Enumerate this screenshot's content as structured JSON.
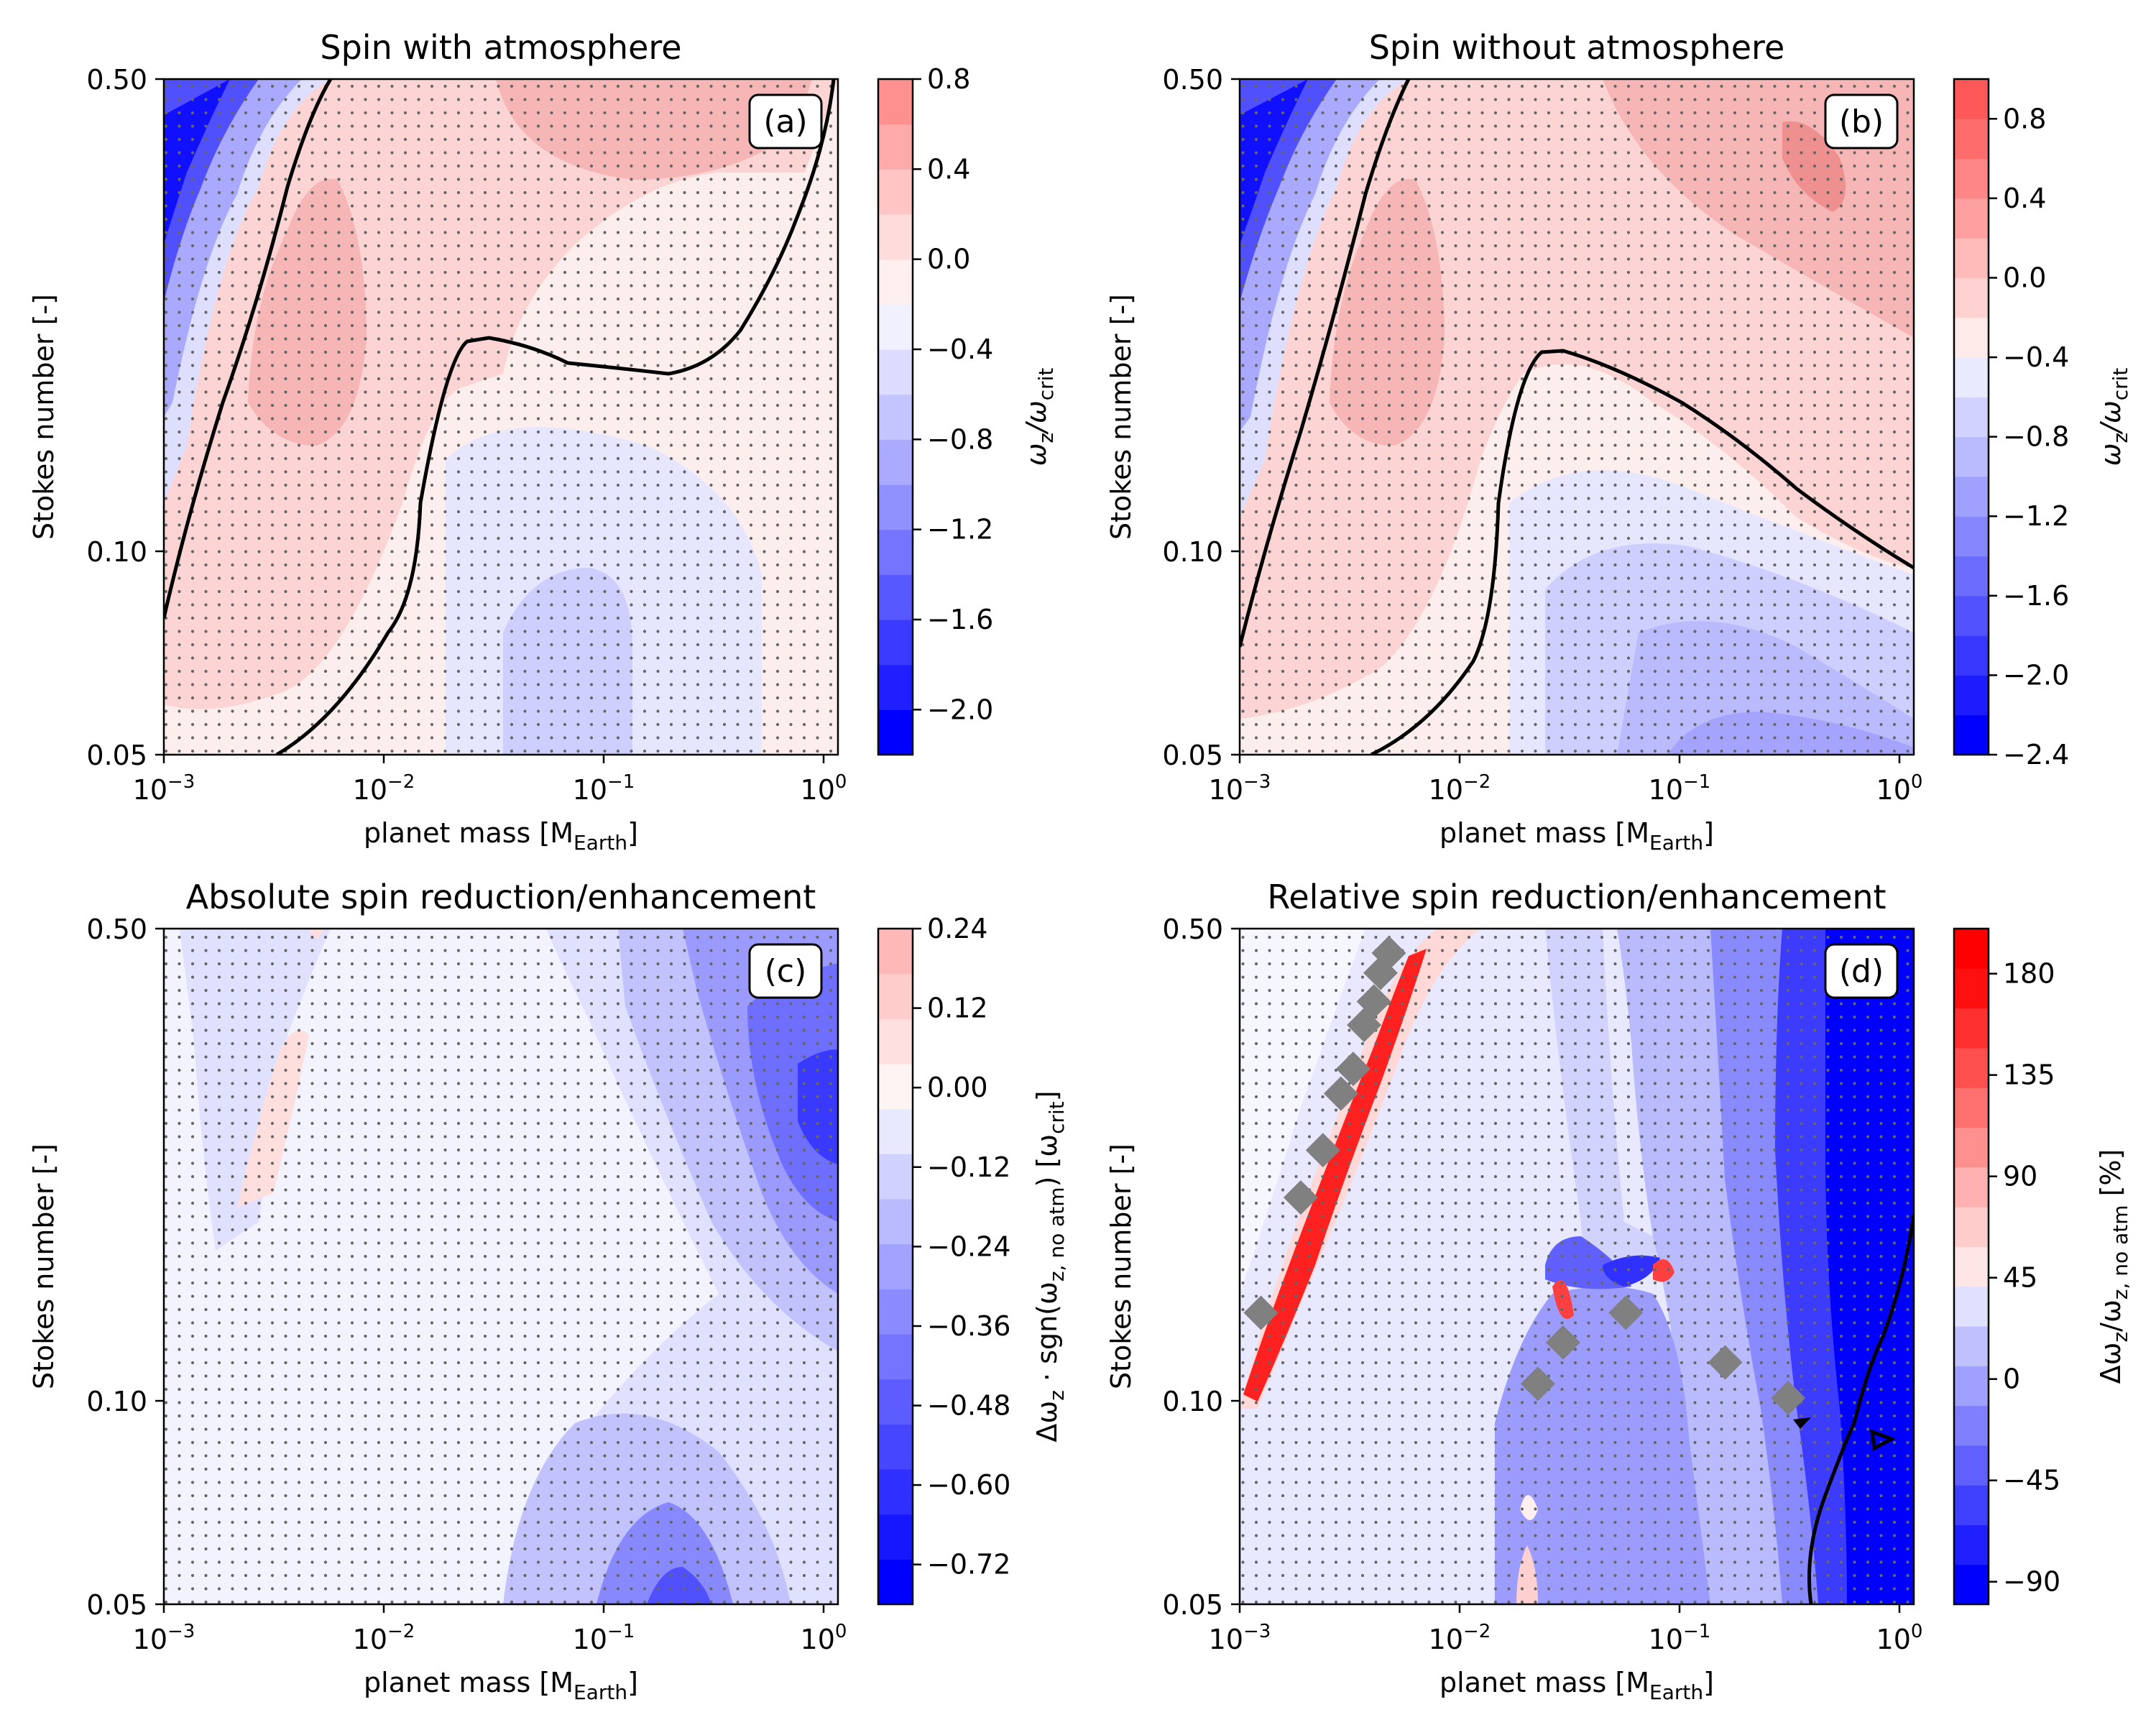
{
  "figure": {
    "x_tick_labels": [
      "10^-3",
      "10^-2",
      "10^-1",
      "10^0"
    ]
  },
  "chart_data": [
    {
      "id": "a",
      "type": "contour",
      "title": "Spin with atmosphere",
      "panel_label": "(a)",
      "xlabel": "planet mass [M_Earth]",
      "xlabel_main": "planet mass [M",
      "xlabel_sub": "Earth",
      "xlabel_end": "]",
      "ylabel": "Stokes number [-]",
      "xscale": "log",
      "xlim": [
        0.001,
        1.2
      ],
      "yscale": "log",
      "ylim": [
        0.05,
        0.5
      ],
      "y_ticks": [
        0.05,
        0.1,
        0.5
      ],
      "y_tick_labels": [
        "0.05",
        "0.10",
        "0.50"
      ],
      "colorbar": {
        "label_main": "ω",
        "label_sub": "z",
        "label_mid": "/ω",
        "label_sub2": "crit",
        "ticks": [
          0.8,
          0.4,
          0.0,
          -0.4,
          -0.8,
          -1.2,
          -1.6,
          -2.0
        ],
        "tick_labels": [
          "0.8",
          "0.4",
          "0.0",
          "−0.4",
          "−0.8",
          "−1.2",
          "−1.6",
          "−2.0"
        ],
        "range": [
          -2.2,
          0.8
        ],
        "colors": [
          "#0000ff",
          "#1f1fff",
          "#3b3bff",
          "#5858ff",
          "#7474ff",
          "#9090ff",
          "#aaaaff",
          "#c4c4ff",
          "#dcdcff",
          "#f0f0ff",
          "#fff0f0",
          "#ffdcdc",
          "#ffc4c4",
          "#ffaaaa",
          "#ff9090"
        ]
      }
    },
    {
      "id": "b",
      "type": "contour",
      "title": "Spin without atmosphere",
      "panel_label": "(b)",
      "xlabel": "planet mass [M_Earth]",
      "xlabel_main": "planet mass [M",
      "xlabel_sub": "Earth",
      "xlabel_end": "]",
      "ylabel": "Stokes number [-]",
      "xscale": "log",
      "xlim": [
        0.001,
        1.2
      ],
      "yscale": "log",
      "ylim": [
        0.05,
        0.5
      ],
      "y_ticks": [
        0.05,
        0.1,
        0.5
      ],
      "y_tick_labels": [
        "0.05",
        "0.10",
        "0.50"
      ],
      "colorbar": {
        "label_main": "ω",
        "label_sub": "z",
        "label_mid": "/ω",
        "label_sub2": "crit",
        "ticks": [
          0.8,
          0.4,
          0.0,
          -0.4,
          -0.8,
          -1.2,
          -1.6,
          -2.0,
          -2.4
        ],
        "tick_labels": [
          "0.8",
          "0.4",
          "0.0",
          "−0.4",
          "−0.8",
          "−1.2",
          "−1.6",
          "−2.0",
          "−2.4"
        ],
        "range": [
          -2.4,
          1.0
        ],
        "colors": [
          "#0000ff",
          "#1c1cff",
          "#3737ff",
          "#5252ff",
          "#6c6cff",
          "#8686ff",
          "#a0a0ff",
          "#babaff",
          "#d2d2ff",
          "#eaeaff",
          "#ffeaea",
          "#ffd2d2",
          "#ffbaba",
          "#ffa0a0",
          "#ff8686",
          "#ff6c6c",
          "#ff5858"
        ]
      }
    },
    {
      "id": "c",
      "type": "contour",
      "title": "Absolute spin reduction/enhancement",
      "panel_label": "(c)",
      "xlabel": "planet mass [M_Earth]",
      "xlabel_main": "planet mass [M",
      "xlabel_sub": "Earth",
      "xlabel_end": "]",
      "ylabel": "Stokes number [-]",
      "xscale": "log",
      "xlim": [
        0.001,
        1.2
      ],
      "yscale": "log",
      "ylim": [
        0.05,
        0.5
      ],
      "y_ticks": [
        0.05,
        0.1,
        0.5
      ],
      "y_tick_labels": [
        "0.05",
        "0.10",
        "0.50"
      ],
      "colorbar": {
        "label_main": "Δω",
        "label_sub": "z",
        "label_mid": " · sgn(ω",
        "label_sub2": "z, no atm",
        "label_end": ") [ω",
        "label_sub3": "crit",
        "label_end2": "]",
        "ticks": [
          0.24,
          0.12,
          0.0,
          -0.12,
          -0.24,
          -0.36,
          -0.48,
          -0.6,
          -0.72
        ],
        "tick_labels": [
          "0.24",
          "0.12",
          "0.00",
          "−0.12",
          "−0.24",
          "−0.36",
          "−0.48",
          "−0.60",
          "−0.72"
        ],
        "range": [
          -0.78,
          0.24
        ],
        "colors": [
          "#0000ff",
          "#1717ff",
          "#2f2fff",
          "#4646ff",
          "#5d5dff",
          "#7474ff",
          "#8b8bff",
          "#a2a2ff",
          "#babaff",
          "#d1d1ff",
          "#e8e8ff",
          "#fff4f4",
          "#ffe0e0",
          "#ffcccc",
          "#ffb8b8"
        ]
      }
    },
    {
      "id": "d",
      "type": "contour",
      "title": "Relative spin reduction/enhancement",
      "panel_label": "(d)",
      "xlabel": "planet mass [M_Earth]",
      "xlabel_main": "planet mass [M",
      "xlabel_sub": "Earth",
      "xlabel_end": "]",
      "ylabel": "Stokes number [-]",
      "xscale": "log",
      "xlim": [
        0.001,
        1.2
      ],
      "yscale": "log",
      "ylim": [
        0.05,
        0.5
      ],
      "y_ticks": [
        0.05,
        0.1,
        0.5
      ],
      "y_tick_labels": [
        "0.05",
        "0.10",
        "0.50"
      ],
      "colorbar": {
        "label_main": "Δω",
        "label_sub": "z",
        "label_mid": "/ω",
        "label_sub2": "z, no atm",
        "label_end": " [%]",
        "ticks": [
          180,
          135,
          90,
          45,
          0,
          -45,
          -90
        ],
        "tick_labels": [
          "180",
          "135",
          "90",
          "45",
          "0",
          "−45",
          "−90"
        ],
        "range": [
          -100,
          200
        ],
        "colors": [
          "#0000ff",
          "#2020ff",
          "#4040ff",
          "#6060ff",
          "#8080ff",
          "#a0a0ff",
          "#c0c0ff",
          "#e0e0ff",
          "#ffe6e6",
          "#ffcccc",
          "#ffb0b0",
          "#ff9090",
          "#ff7070",
          "#ff5050",
          "#ff3030",
          "#ff1010",
          "#ff0000"
        ]
      },
      "diamond_markers": [
        {
          "mass": 0.00125,
          "stokes": 0.135
        },
        {
          "mass": 0.0019,
          "stokes": 0.2
        },
        {
          "mass": 0.0024,
          "stokes": 0.235
        },
        {
          "mass": 0.0029,
          "stokes": 0.285
        },
        {
          "mass": 0.0033,
          "stokes": 0.31
        },
        {
          "mass": 0.0037,
          "stokes": 0.36
        },
        {
          "mass": 0.0041,
          "stokes": 0.39
        },
        {
          "mass": 0.0044,
          "stokes": 0.43
        },
        {
          "mass": 0.0048,
          "stokes": 0.46
        },
        {
          "mass": 0.023,
          "stokes": 0.106
        },
        {
          "mass": 0.03,
          "stokes": 0.122
        },
        {
          "mass": 0.058,
          "stokes": 0.135
        },
        {
          "mass": 0.165,
          "stokes": 0.114
        },
        {
          "mass": 0.32,
          "stokes": 0.101
        }
      ]
    }
  ]
}
